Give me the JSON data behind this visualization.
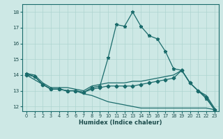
{
  "xlabel": "Humidex (Indice chaleur)",
  "xlim": [
    -0.5,
    23.5
  ],
  "ylim": [
    11.7,
    18.5
  ],
  "yticks": [
    12,
    13,
    14,
    15,
    16,
    17,
    18
  ],
  "xticks": [
    0,
    1,
    2,
    3,
    4,
    5,
    6,
    7,
    8,
    9,
    10,
    11,
    12,
    13,
    14,
    15,
    16,
    17,
    18,
    19,
    20,
    21,
    22,
    23
  ],
  "bg_color": "#cde8e5",
  "grid_color": "#aed4d0",
  "line_color": "#1a6b6b",
  "line1_x": [
    0,
    1,
    2,
    3,
    4,
    5,
    6,
    7,
    8,
    9,
    10,
    11,
    12,
    13,
    14,
    15,
    16,
    17,
    18,
    19,
    20,
    21,
    22,
    23
  ],
  "line1_y": [
    14.1,
    13.9,
    13.4,
    13.1,
    13.1,
    13.0,
    13.0,
    12.9,
    13.2,
    13.3,
    15.1,
    17.2,
    17.1,
    18.0,
    17.1,
    16.5,
    16.3,
    15.5,
    14.4,
    14.3,
    13.5,
    13.0,
    12.5,
    11.8
  ],
  "line2_x": [
    0,
    1,
    2,
    3,
    4,
    5,
    6,
    7,
    8,
    9,
    10,
    11,
    12,
    13,
    14,
    15,
    16,
    17,
    18,
    19,
    20,
    21,
    22,
    23
  ],
  "line2_y": [
    14.1,
    14.0,
    13.5,
    13.2,
    13.2,
    13.2,
    13.1,
    13.0,
    13.3,
    13.4,
    13.5,
    13.5,
    13.5,
    13.6,
    13.6,
    13.7,
    13.8,
    13.9,
    14.0,
    14.3,
    13.5,
    13.0,
    12.7,
    11.9
  ],
  "line3_x": [
    0,
    1,
    2,
    3,
    4,
    5,
    6,
    7,
    8,
    9,
    10,
    11,
    12,
    13,
    14,
    15,
    16,
    17,
    18,
    19,
    20,
    21,
    22,
    23
  ],
  "line3_y": [
    14.0,
    13.9,
    13.4,
    13.1,
    13.1,
    13.0,
    13.0,
    12.9,
    13.1,
    13.2,
    13.3,
    13.3,
    13.3,
    13.3,
    13.4,
    13.5,
    13.6,
    13.7,
    13.8,
    14.3,
    13.5,
    13.0,
    12.6,
    11.8
  ],
  "line4_x": [
    0,
    2,
    3,
    4,
    5,
    6,
    7,
    8,
    9,
    10,
    11,
    12,
    13,
    14,
    15,
    16,
    17,
    18,
    19,
    20,
    21,
    22,
    23
  ],
  "line4_y": [
    14.0,
    13.4,
    13.1,
    13.1,
    13.0,
    13.0,
    12.8,
    12.7,
    12.5,
    12.3,
    12.2,
    12.1,
    12.0,
    11.9,
    11.9,
    11.9,
    11.9,
    11.9,
    11.9,
    11.9,
    11.9,
    11.9,
    11.8
  ]
}
